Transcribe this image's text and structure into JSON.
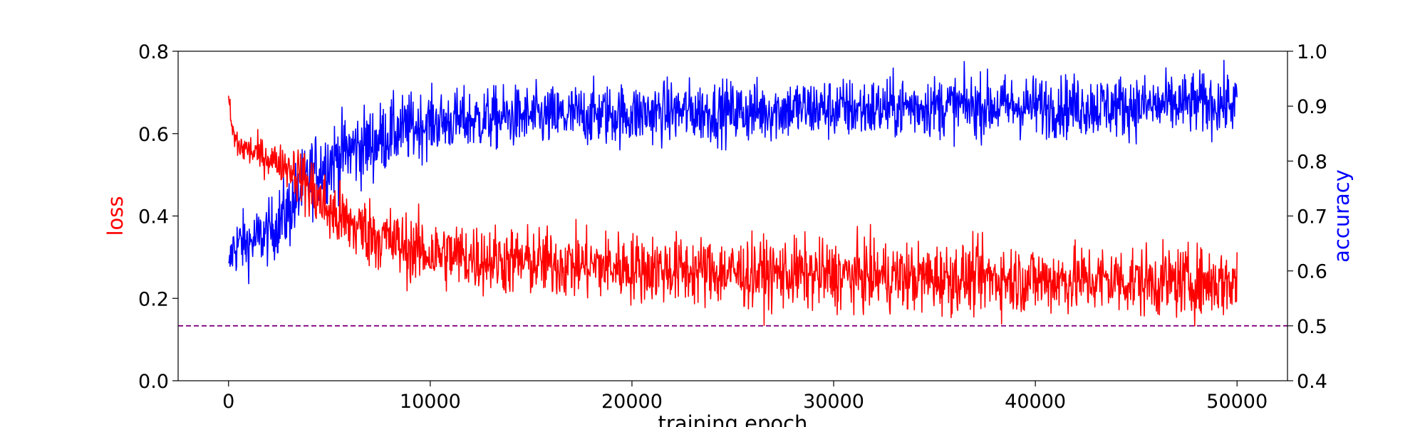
{
  "chart_data": {
    "type": "line",
    "xlabel": "training epoch",
    "ylabel_left": "loss",
    "ylabel_right": "accuracy",
    "xlim": [
      -2500,
      52500
    ],
    "ylim_left": [
      0.0,
      0.8
    ],
    "ylim_right": [
      0.4,
      1.0
    ],
    "x_ticks": [
      0,
      10000,
      20000,
      30000,
      40000,
      50000
    ],
    "x_tick_labels": [
      "0",
      "10000",
      "20000",
      "30000",
      "40000",
      "50000"
    ],
    "y_left_ticks": [
      0.0,
      0.2,
      0.4,
      0.6,
      0.8
    ],
    "y_left_tick_labels": [
      "0.0",
      "0.2",
      "0.4",
      "0.6",
      "0.8"
    ],
    "y_right_ticks": [
      0.4,
      0.5,
      0.6,
      0.7,
      0.8,
      0.9,
      1.0
    ],
    "y_right_tick_labels": [
      "0.4",
      "0.5",
      "0.6",
      "0.7",
      "0.8",
      "0.9",
      "1.0"
    ],
    "colors": {
      "loss": "#ff0000",
      "accuracy": "#0000ff",
      "reference": "#800080"
    },
    "grid": false,
    "series": [
      {
        "axis": "left",
        "color": "#ff0000",
        "x": [
          0,
          200,
          500,
          1000,
          1500,
          2000,
          2500,
          3000,
          3500,
          4000,
          4500,
          5000,
          6000,
          7000,
          8000,
          9000,
          10000,
          12000,
          14000,
          16000,
          18000,
          20000,
          22000,
          24000,
          26000,
          28000,
          30000,
          32000,
          34000,
          36000,
          38000,
          40000,
          42000,
          44000,
          46000,
          48000,
          50000
        ],
        "values": [
          0.69,
          0.6,
          0.57,
          0.56,
          0.55,
          0.54,
          0.53,
          0.52,
          0.5,
          0.47,
          0.44,
          0.41,
          0.38,
          0.36,
          0.34,
          0.32,
          0.31,
          0.3,
          0.29,
          0.285,
          0.28,
          0.275,
          0.27,
          0.265,
          0.26,
          0.26,
          0.255,
          0.255,
          0.25,
          0.25,
          0.25,
          0.245,
          0.245,
          0.245,
          0.24,
          0.24,
          0.24
        ],
        "noise": [
          0.01,
          0.03,
          0.03,
          0.03,
          0.03,
          0.03,
          0.03,
          0.04,
          0.05,
          0.06,
          0.06,
          0.06,
          0.06,
          0.06,
          0.06,
          0.06,
          0.06,
          0.06,
          0.06,
          0.06,
          0.06,
          0.06,
          0.06,
          0.06,
          0.06,
          0.06,
          0.06,
          0.06,
          0.06,
          0.06,
          0.06,
          0.06,
          0.06,
          0.06,
          0.06,
          0.06,
          0.06
        ]
      },
      {
        "axis": "right",
        "color": "#0000ff",
        "x": [
          0,
          200,
          500,
          1000,
          1500,
          2000,
          2500,
          3000,
          3500,
          4000,
          4500,
          5000,
          6000,
          7000,
          8000,
          9000,
          10000,
          12000,
          14000,
          16000,
          18000,
          20000,
          22000,
          24000,
          26000,
          28000,
          30000,
          32000,
          34000,
          36000,
          38000,
          40000,
          42000,
          44000,
          46000,
          48000,
          50000
        ],
        "values": [
          0.6,
          0.64,
          0.65,
          0.65,
          0.66,
          0.67,
          0.69,
          0.71,
          0.74,
          0.77,
          0.79,
          0.8,
          0.82,
          0.83,
          0.85,
          0.86,
          0.87,
          0.875,
          0.88,
          0.88,
          0.885,
          0.885,
          0.89,
          0.89,
          0.89,
          0.895,
          0.895,
          0.895,
          0.9,
          0.9,
          0.9,
          0.9,
          0.9,
          0.9,
          0.9,
          0.905,
          0.905
        ],
        "noise": [
          0.02,
          0.04,
          0.04,
          0.04,
          0.04,
          0.04,
          0.045,
          0.05,
          0.05,
          0.05,
          0.05,
          0.05,
          0.05,
          0.05,
          0.045,
          0.045,
          0.04,
          0.04,
          0.04,
          0.04,
          0.04,
          0.04,
          0.04,
          0.04,
          0.04,
          0.04,
          0.04,
          0.04,
          0.04,
          0.04,
          0.04,
          0.04,
          0.04,
          0.04,
          0.04,
          0.04,
          0.04
        ]
      }
    ],
    "reference_line": {
      "axis": "right",
      "y": 0.5,
      "style": "dashed",
      "color": "#800080"
    }
  }
}
